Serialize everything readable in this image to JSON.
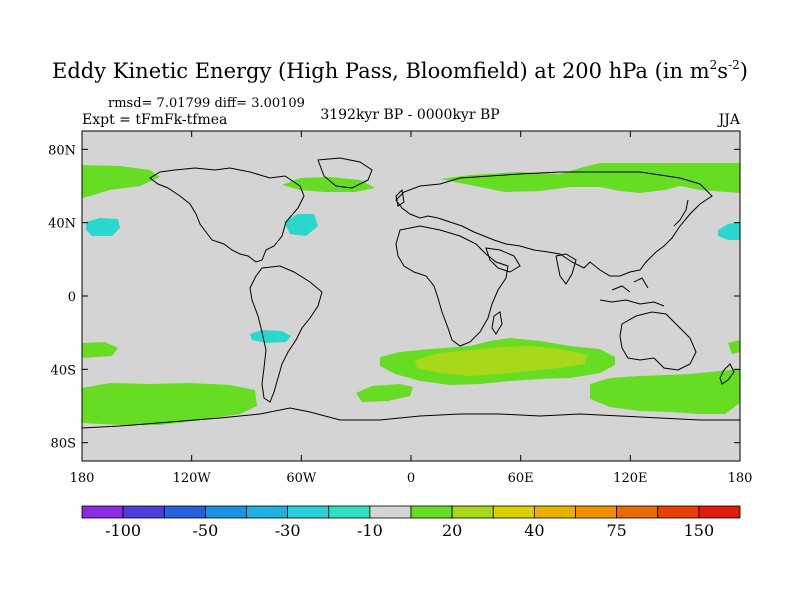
{
  "title": {
    "main": "Eddy Kinetic Energy (High Pass, Bloomfield) at 200 hPa (in m",
    "exp1": "2",
    "mid": "s",
    "exp2": "-2",
    "close": ")"
  },
  "stats_text": "rmsd= 7.01799 diff= 3.00109",
  "expt_text": "Expt = tFmFk-tfmea",
  "period_text": "3192kyr BP - 0000kyr BP",
  "season_text": "JJA",
  "map": {
    "x_ticks": [
      {
        "lon": -180,
        "label": "180"
      },
      {
        "lon": -120,
        "label": "120W"
      },
      {
        "lon": -60,
        "label": "60W"
      },
      {
        "lon": 0,
        "label": "0"
      },
      {
        "lon": 60,
        "label": "60E"
      },
      {
        "lon": 120,
        "label": "120E"
      },
      {
        "lon": 180,
        "label": "180"
      }
    ],
    "y_ticks": [
      {
        "lat": 80,
        "label": "80N"
      },
      {
        "lat": 40,
        "label": "40N"
      },
      {
        "lat": 0,
        "label": "0"
      },
      {
        "lat": -40,
        "label": "40S"
      },
      {
        "lat": -80,
        "label": "80S"
      }
    ],
    "background_color": "#d4d4d4"
  },
  "colorbar": {
    "colors": [
      "#8a2be2",
      "#4b3fd9",
      "#2a5fe0",
      "#1e90e6",
      "#1fb0e0",
      "#28d0d8",
      "#2ee0c0",
      "#d4d4d4",
      "#66dd22",
      "#a8d81a",
      "#d8d000",
      "#e8b000",
      "#f09000",
      "#e86a00",
      "#e84000",
      "#e01c0c"
    ],
    "labels": [
      {
        "index": 1,
        "text": "-100"
      },
      {
        "index": 3,
        "text": "-50"
      },
      {
        "index": 5,
        "text": "-30"
      },
      {
        "index": 7,
        "text": "-10"
      },
      {
        "index": 9,
        "text": "20"
      },
      {
        "index": 11,
        "text": "40"
      },
      {
        "index": 13,
        "text": "75"
      },
      {
        "index": 15,
        "text": "150"
      }
    ]
  }
}
